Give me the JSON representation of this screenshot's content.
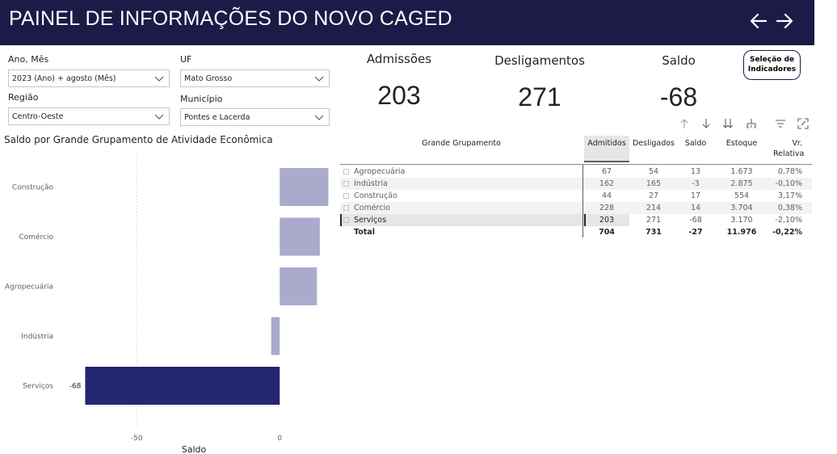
{
  "header": {
    "title": "PAINEL DE INFORMAÇÕES DO NOVO CAGED",
    "back_icon": "arrow-left-icon",
    "forward_icon": "arrow-right-icon",
    "background_color": "#1c1a47"
  },
  "filters": {
    "ano_mes": {
      "label": "Ano, Mês",
      "value": "2023 (Ano) + agosto (Mês)"
    },
    "uf": {
      "label": "UF",
      "value": "Mato Grosso"
    },
    "regiao": {
      "label": "Região",
      "value": "Centro-Oeste"
    },
    "municipio": {
      "label": "Município",
      "value": "Pontes e Lacerda"
    }
  },
  "kpis": {
    "admissoes": {
      "label": "Admissões",
      "value": "203"
    },
    "desligamentos": {
      "label": "Desligamentos",
      "value": "271"
    },
    "saldo": {
      "label": "Saldo",
      "value": "-68"
    }
  },
  "selection_button": {
    "label_line1": "Seleção de",
    "label_line2": "Indicadores"
  },
  "chart_title": "Saldo por Grande Grupamento de Atividade Econômica",
  "chart_data": {
    "type": "bar",
    "orientation": "horizontal",
    "categories": [
      "Construção",
      "Comércio",
      "Agropecuária",
      "Indústria",
      "Serviços"
    ],
    "values": [
      17,
      14,
      13,
      -3,
      -68
    ],
    "highlighted": "Serviços",
    "data_labels": {
      "Serviços": "-68"
    },
    "xlabel": "Saldo",
    "xticks": [
      -50,
      0
    ],
    "xlim": [
      -78,
      18
    ],
    "colors": {
      "default": "#aaaacd",
      "highlight": "#252671"
    }
  },
  "table_toolbar": {
    "icons": [
      "arrow-up-icon",
      "arrow-down-icon",
      "expand-all-down-icon",
      "expand-hierarchy-icon",
      "filter-icon",
      "focus-mode-icon"
    ]
  },
  "table": {
    "headers": [
      "Grande Grupamento",
      "Admitidos",
      "Desligados",
      "Saldo",
      "Estoque",
      "Vr. Relativa"
    ],
    "rows": [
      {
        "name": "Agropecuária",
        "admitidos": "67",
        "desligados": "54",
        "saldo": "13",
        "estoque": "1.673",
        "vr": "0,78%"
      },
      {
        "name": "Indústria",
        "admitidos": "162",
        "desligados": "165",
        "saldo": "-3",
        "estoque": "2.875",
        "vr": "-0,10%"
      },
      {
        "name": "Construção",
        "admitidos": "44",
        "desligados": "27",
        "saldo": "17",
        "estoque": "554",
        "vr": "3,17%"
      },
      {
        "name": "Comércio",
        "admitidos": "228",
        "desligados": "214",
        "saldo": "14",
        "estoque": "3.704",
        "vr": "0,38%"
      },
      {
        "name": "Serviços",
        "admitidos": "203",
        "desligados": "271",
        "saldo": "-68",
        "estoque": "3.170",
        "vr": "-2,10%"
      }
    ],
    "total": {
      "name": "Total",
      "admitidos": "704",
      "desligados": "731",
      "saldo": "-27",
      "estoque": "11.976",
      "vr": "-0,22%"
    }
  }
}
